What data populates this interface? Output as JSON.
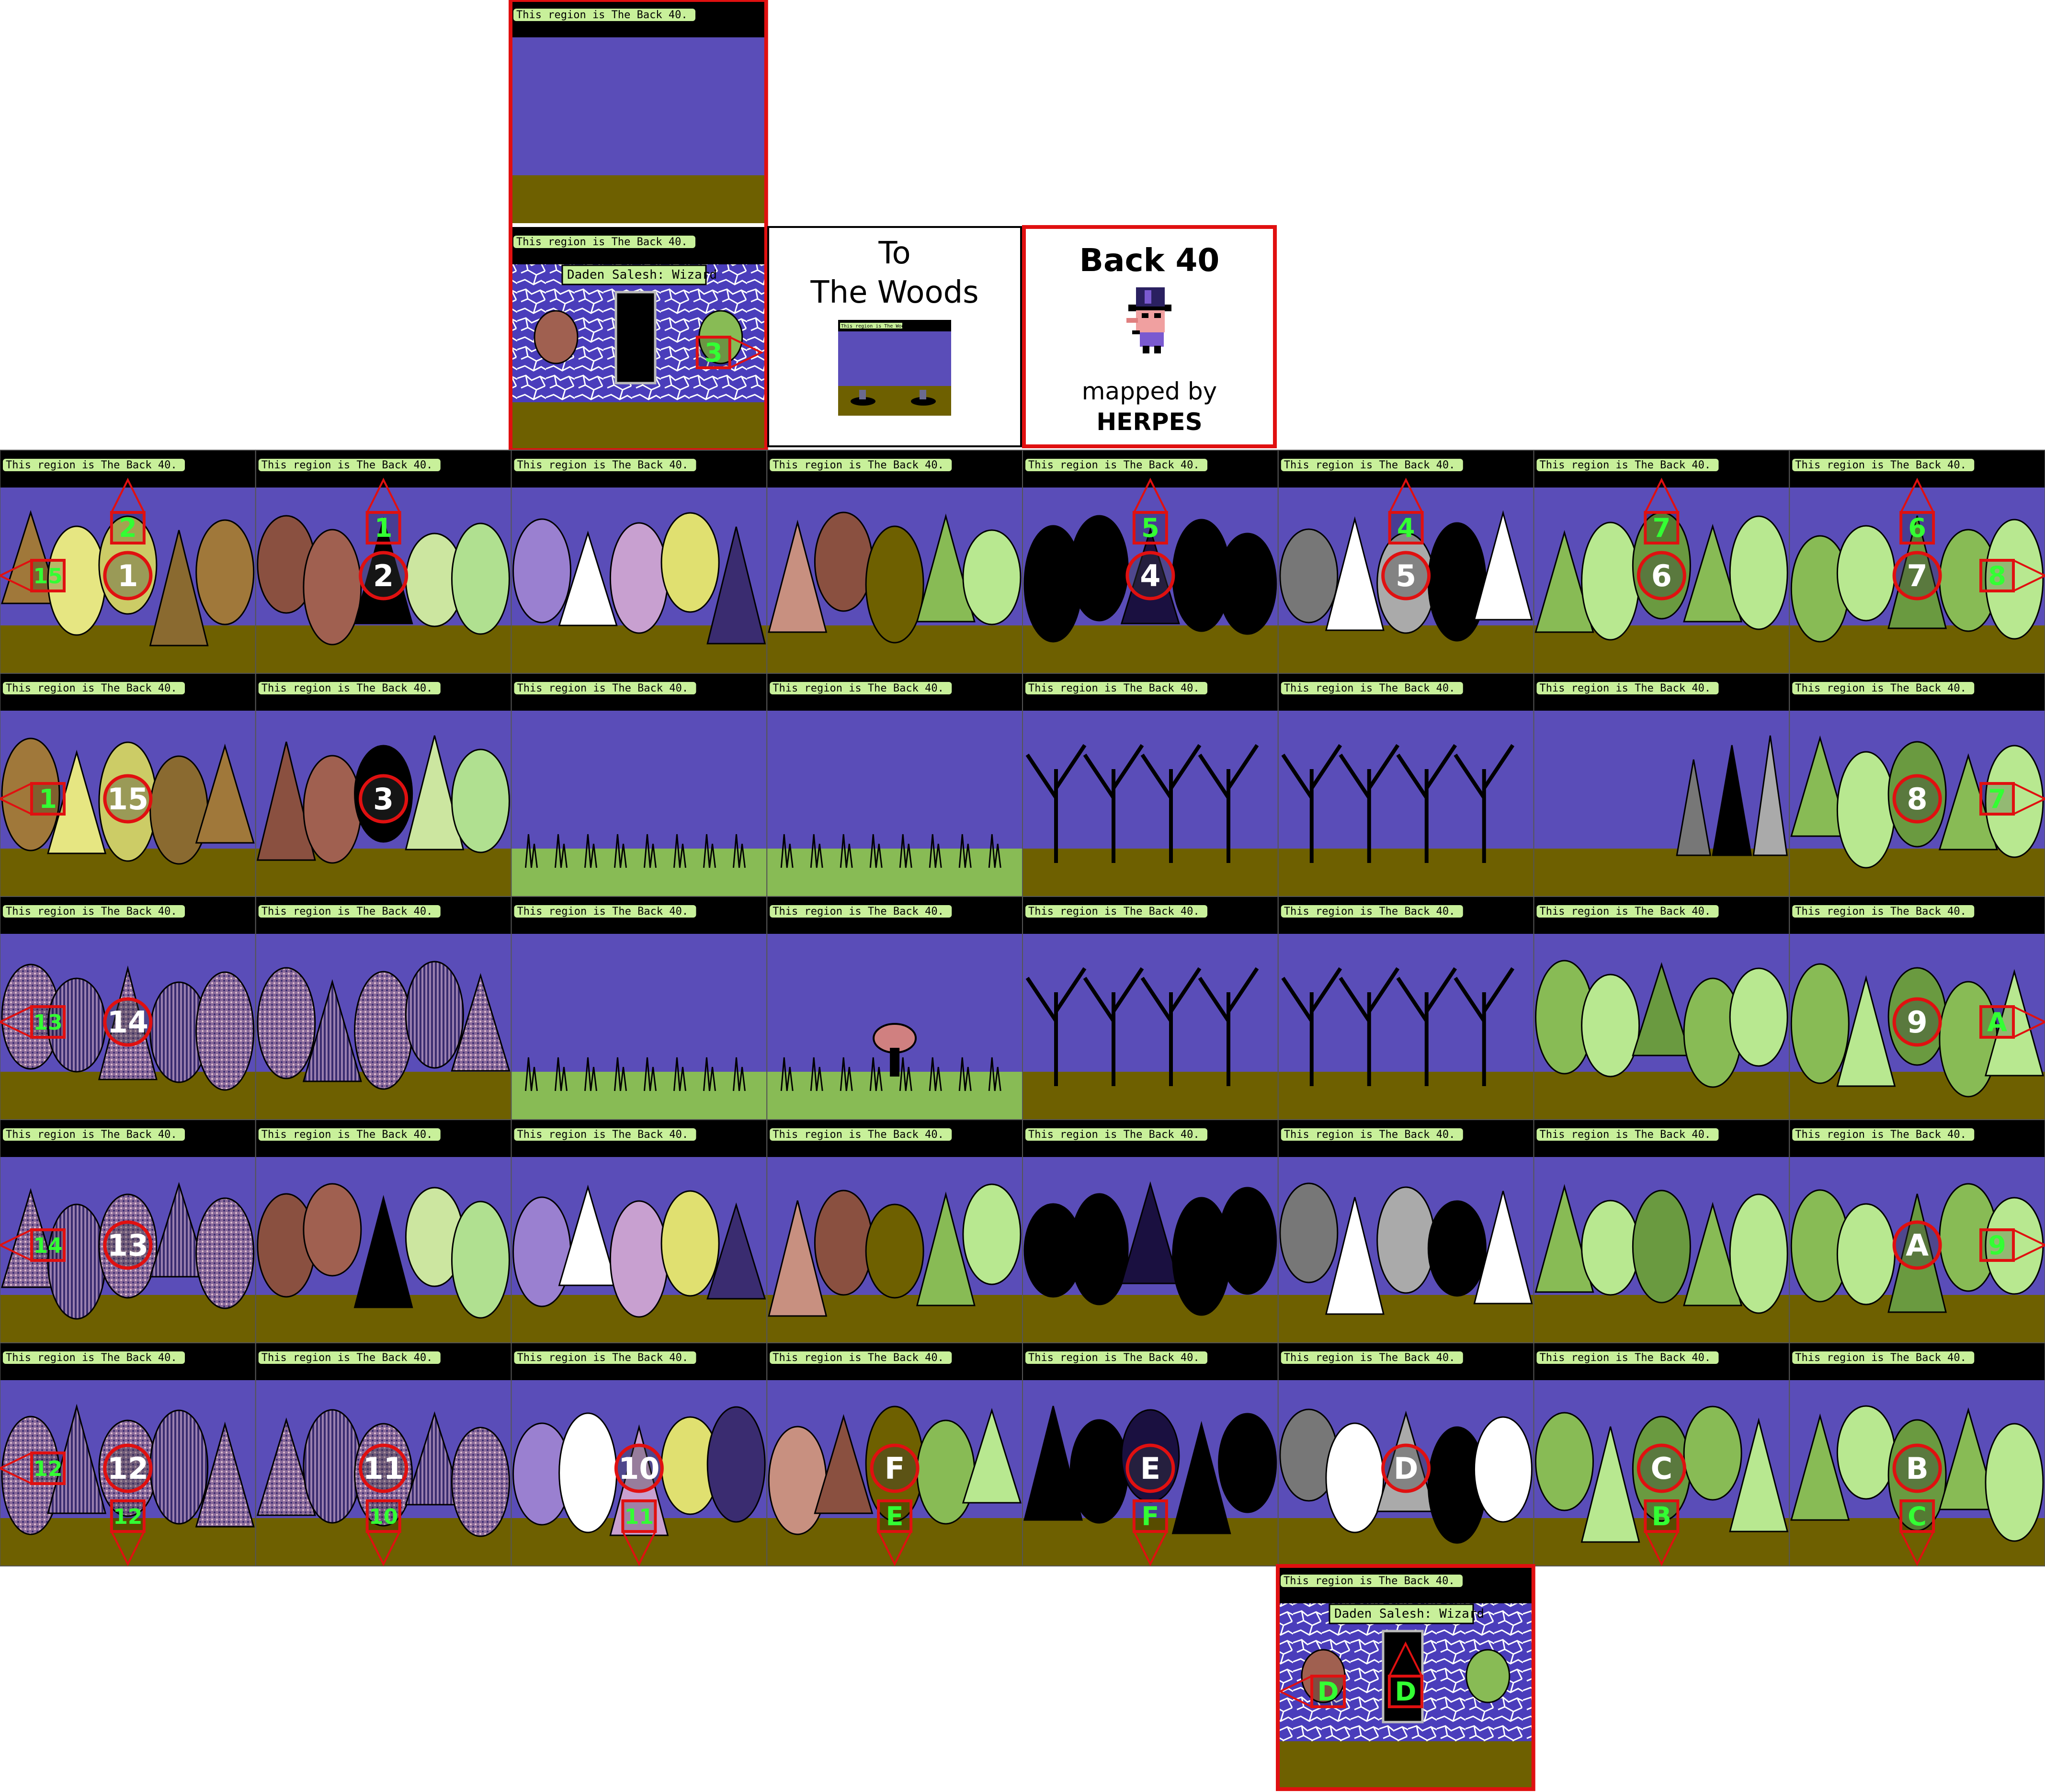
{
  "legend_box": {
    "title": "Back 40",
    "subtitle": "mapped by",
    "author": "HERPES"
  },
  "woods_box": {
    "line1": "To",
    "line2": "The Woods",
    "thumb_banner": "This region is The Woods."
  },
  "region_banner": "This region is The Back 40.",
  "wizard_sign": "Daden Salesh: Wizard",
  "colors": {
    "sky": "#5a4db8",
    "ground": "#6e6000",
    "banner_bg": "#000000",
    "banner_text_bg": "#c8f09a",
    "marker": "#e01010",
    "marker_text": "#33ff33",
    "meadow": "#88bb55"
  },
  "rows": [
    [
      {
        "circle": "1",
        "up": "2",
        "left": "15"
      },
      {
        "circle": "2",
        "up": "1"
      },
      {},
      {},
      {
        "circle": "4",
        "up": "5"
      },
      {
        "circle": "5",
        "up": "4"
      },
      {
        "circle": "6",
        "up": "7"
      },
      {
        "circle": "7",
        "up": "6",
        "right": "8"
      }
    ],
    [
      {
        "circle": "15",
        "left": "1"
      },
      {
        "circle": "3"
      },
      {},
      {},
      {},
      {},
      {},
      {
        "circle": "8",
        "right": "7"
      }
    ],
    [
      {
        "circle": "14",
        "left": "13"
      },
      {},
      {},
      {},
      {},
      {},
      {},
      {
        "circle": "9",
        "right": "A"
      }
    ],
    [
      {
        "circle": "13",
        "left": "14"
      },
      {},
      {},
      {},
      {},
      {},
      {},
      {
        "circle": "A",
        "right": "9"
      }
    ],
    [
      {
        "circle": "12",
        "left": "12",
        "down": "12"
      },
      {
        "circle": "11",
        "down": "10"
      },
      {
        "circle": "10",
        "down": "11"
      },
      {
        "circle": "F",
        "down": "E"
      },
      {
        "circle": "E",
        "down": "F"
      },
      {
        "circle": "D"
      },
      {
        "circle": "C",
        "down": "B"
      },
      {
        "circle": "B",
        "down": "C"
      }
    ]
  ],
  "top_wizard_marker": "3",
  "bottom_wizard_markers": [
    "D",
    "D"
  ]
}
